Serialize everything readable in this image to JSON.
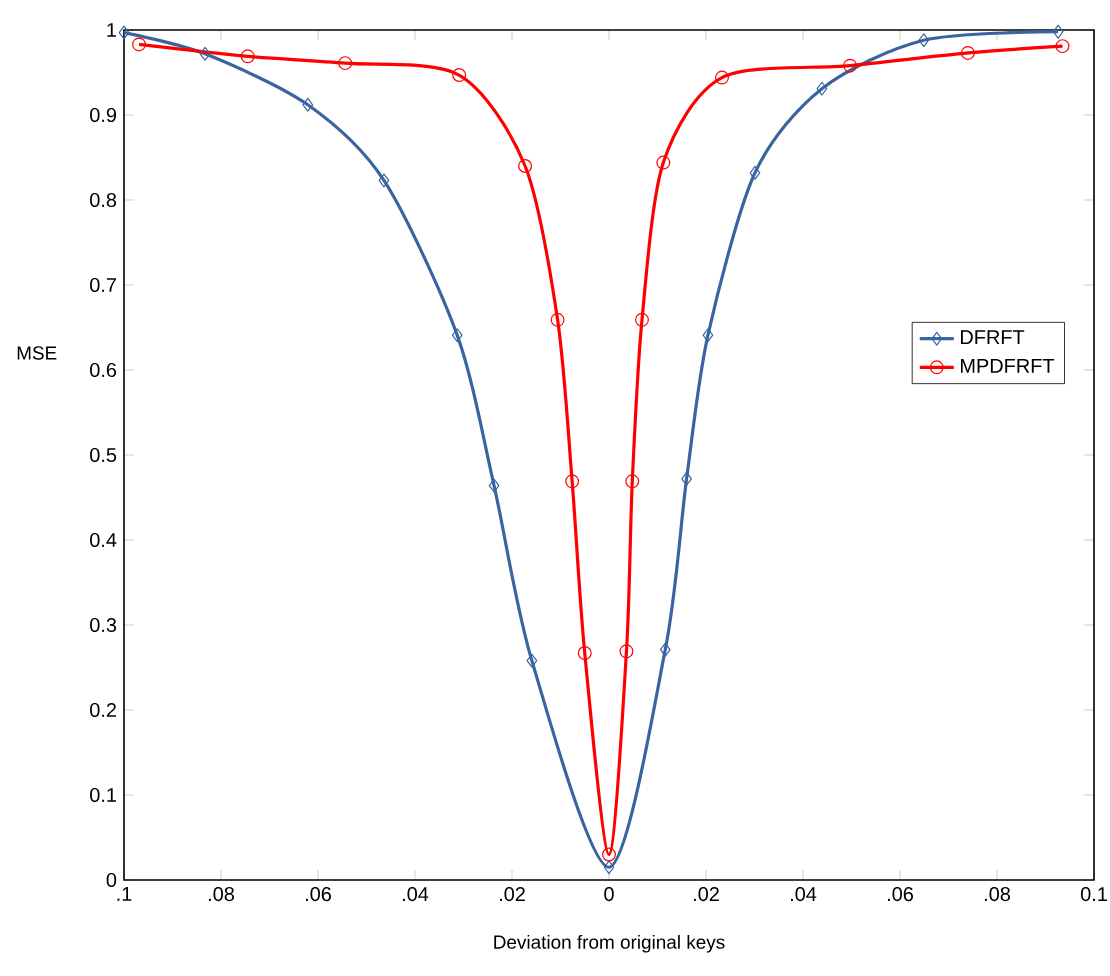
{
  "chart_data": {
    "type": "line",
    "xlabel": "Deviation from original keys",
    "ylabel": "MSE",
    "xlim": [
      -0.1,
      0.1
    ],
    "ylim": [
      0,
      1
    ],
    "xticks": [
      {
        "value": -0.1,
        "label": ".1"
      },
      {
        "value": -0.08,
        "label": ".08"
      },
      {
        "value": -0.06,
        "label": ".06"
      },
      {
        "value": -0.04,
        "label": ".04"
      },
      {
        "value": -0.02,
        "label": ".02"
      },
      0,
      {
        "value": 0.02,
        "label": ".02"
      },
      {
        "value": 0.04,
        "label": ".04"
      },
      {
        "value": 0.06,
        "label": ".06"
      },
      {
        "value": 0.08,
        "label": ".08"
      },
      0.1
    ],
    "yticks": [
      0,
      0.1,
      0.2,
      0.3,
      0.4,
      0.5,
      0.6,
      0.7,
      0.8,
      0.9,
      1
    ],
    "grid": false,
    "legend": "right",
    "line_style": "solid",
    "series": [
      {
        "name": "DFRFT",
        "color": "#3a64a0",
        "marker": "diamond",
        "x": [
          -0.1,
          -0.0833,
          -0.0621,
          -0.0464,
          -0.0313,
          -0.0237,
          -0.0159,
          0,
          0.0116,
          0.016,
          0.0204,
          0.0301,
          0.0439,
          0.0649,
          0.0926
        ],
        "values": [
          0.997,
          0.972,
          0.912,
          0.823,
          0.641,
          0.464,
          0.258,
          0.015,
          0.271,
          0.472,
          0.641,
          0.832,
          0.931,
          0.988,
          0.998
        ]
      },
      {
        "name": "MPDFRFT",
        "color": "#ff0000",
        "marker": "circle",
        "x": [
          -0.0969,
          -0.0745,
          -0.0544,
          -0.0309,
          -0.0173,
          -0.0106,
          -0.0076,
          -0.005,
          0,
          0.0036,
          0.0048,
          0.0068,
          0.0112,
          0.0233,
          0.0497,
          0.074,
          0.0935
        ],
        "values": [
          0.983,
          0.969,
          0.961,
          0.947,
          0.84,
          0.659,
          0.469,
          0.267,
          0.03,
          0.269,
          0.469,
          0.659,
          0.844,
          0.944,
          0.958,
          0.973,
          0.981
        ]
      }
    ]
  }
}
